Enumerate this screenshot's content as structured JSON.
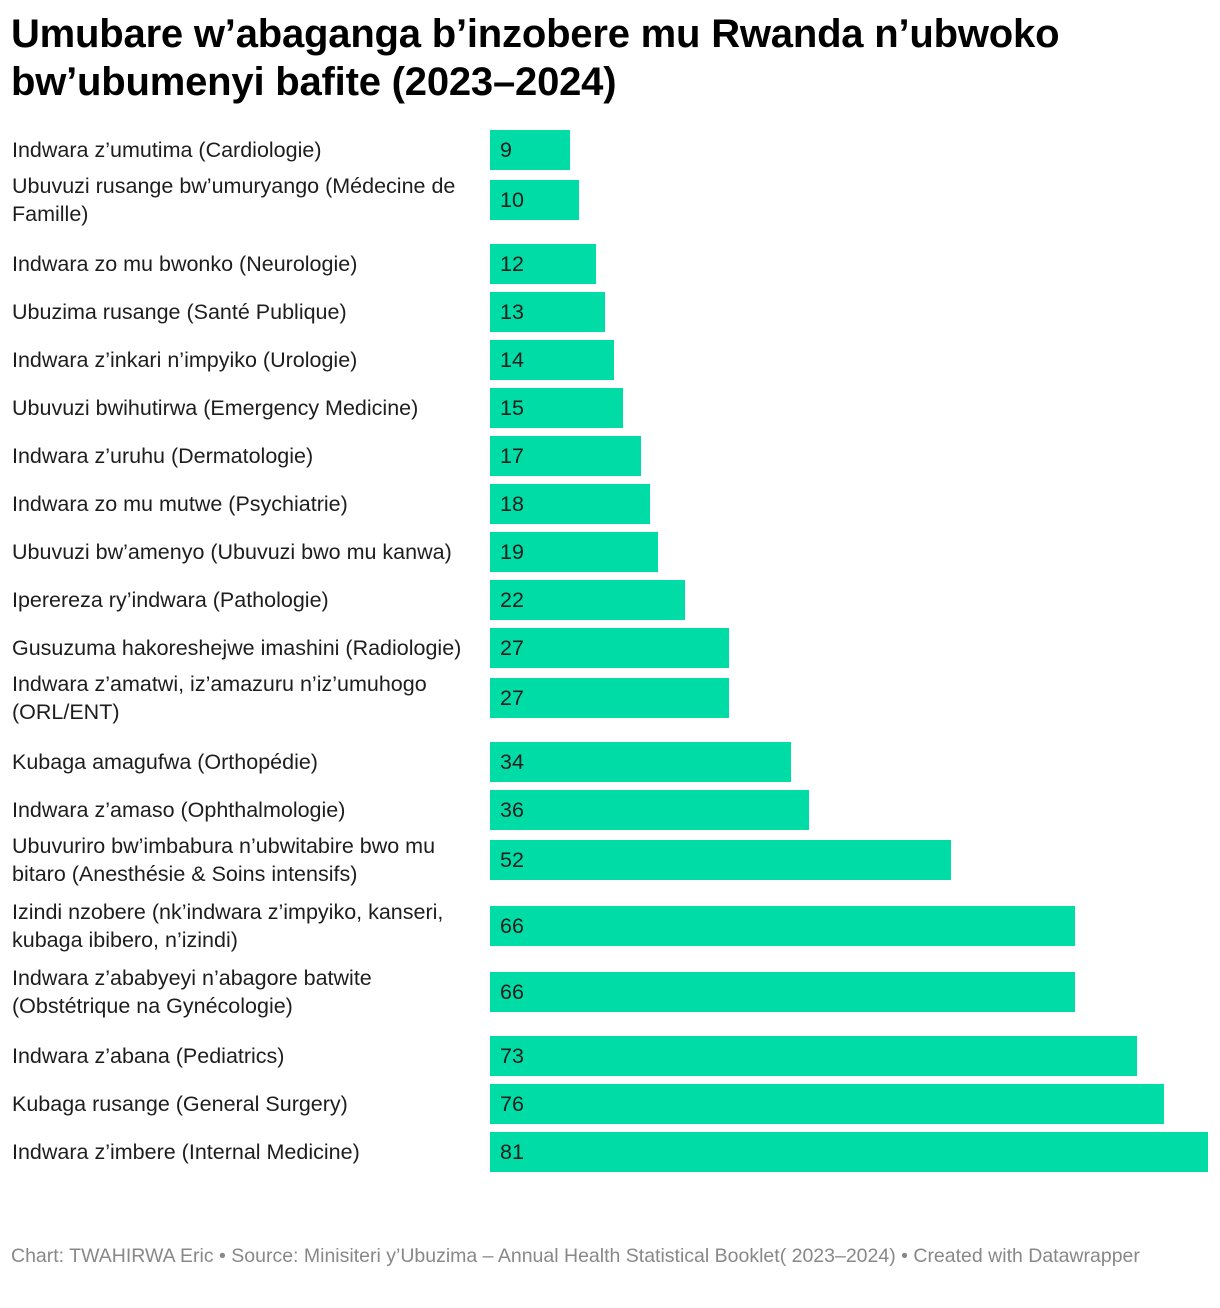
{
  "title": "Umubare w’abaganga b’inzobere mu Rwanda n’ubwoko bw’ubumenyi bafite (2023–2024)",
  "footer": "Chart: TWAHIRWA Eric  • Source: Minisiteri y’Ubuzima – Annual Health Statistical Booklet( 2023–2024) • Created with Datawrapper",
  "colors": {
    "bar": "#00dca5"
  },
  "chart_data": {
    "type": "bar",
    "orientation": "horizontal",
    "categories": [
      "Indwara z’umutima (Cardiologie)",
      "Ubuvuzi rusange bw’umuryango (Médecine de Famille)",
      "Indwara zo mu bwonko (Neurologie)",
      "Ubuzima rusange (Santé Publique)",
      "Indwara z’inkari n’impyiko (Urologie)",
      "Ubuvuzi bwihutirwa (Emergency Medicine)",
      "Indwara z’uruhu (Dermatologie)",
      "Indwara zo mu mutwe (Psychiatrie)",
      "Ubuvuzi bw’amenyo (Ubuvuzi bwo mu kanwa)",
      "Iperereza ry’indwara (Pathologie)",
      "Gusuzuma hakoreshejwe imashini (Radiologie)",
      "Indwara z’amatwi, iz’amazuru n’iz’umuhogo (ORL/ENT)",
      "Kubaga amagufwa (Orthopédie)",
      "Indwara z’amaso (Ophthalmologie)",
      "Ubuvuriro bw’imbabura n’ubwitabire bwo mu bitaro (Anesthésie & Soins intensifs)",
      "Izindi nzobere (nk’indwara z’impyiko, kanseri, kubaga ibibero, n’izindi)",
      "Indwara z’ababyeyi n’abagore batwite (Obstétrique na Gynécologie)",
      "Indwara z’abana (Pediatrics)",
      "Kubaga rusange (General Surgery)",
      "Indwara z’imbere (Internal Medicine)"
    ],
    "values": [
      9,
      10,
      12,
      13,
      14,
      15,
      17,
      18,
      19,
      22,
      27,
      27,
      34,
      36,
      52,
      66,
      66,
      73,
      76,
      81
    ],
    "xlim": [
      0,
      81
    ],
    "grid": false,
    "legend": "none",
    "value_labels": "inside-left"
  }
}
